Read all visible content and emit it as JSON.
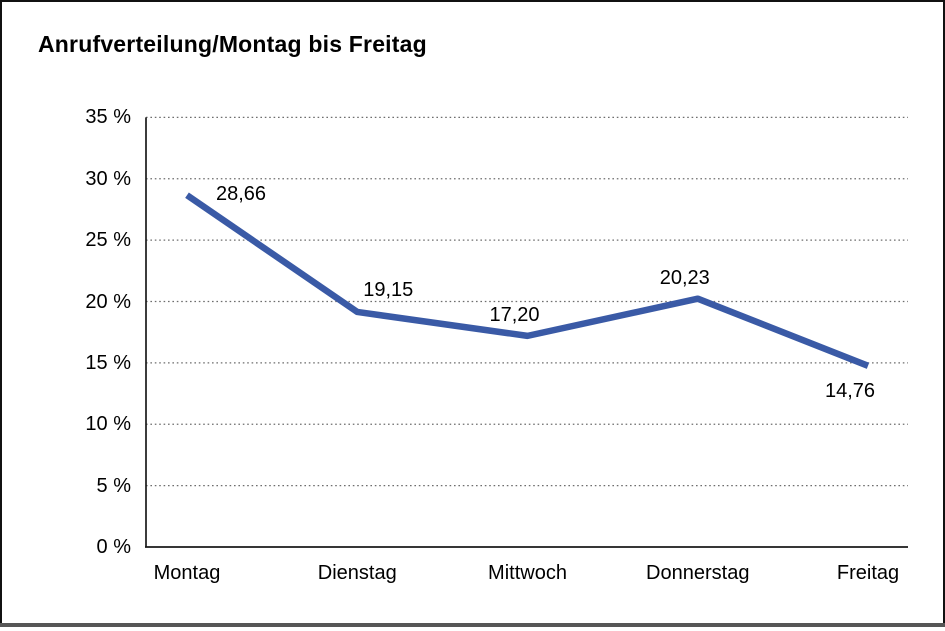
{
  "chart_data": {
    "type": "line",
    "title": "Anrufverteilung/Montag bis Freitag",
    "categories": [
      "Montag",
      "Dienstag",
      "Mittwoch",
      "Donnerstag",
      "Freitag"
    ],
    "values": [
      28.66,
      19.15,
      17.2,
      20.23,
      14.76
    ],
    "value_labels": [
      "28,66",
      "19,15",
      "17,20",
      "20,23",
      "14,76"
    ],
    "label_placements": [
      "right",
      "above-right",
      "above-left",
      "above-left",
      "below-left"
    ],
    "xlabel": "",
    "ylabel": "",
    "y_axis": {
      "min": 0,
      "max": 35,
      "step": 5,
      "unit": "%",
      "tick_labels": [
        "0 %",
        "5 %",
        "10 %",
        "15 %",
        "20 %",
        "25 %",
        "30 %",
        "35 %"
      ]
    },
    "grid": "horizontal-dotted",
    "legend": "none",
    "colors": {
      "line": "#3a5aa6",
      "axis": "#1a1a1a",
      "gridline": "#6e6e6e",
      "text": "#000000",
      "frame": "#111111",
      "bottom_rule": "#565656",
      "background": "#ffffff"
    }
  }
}
